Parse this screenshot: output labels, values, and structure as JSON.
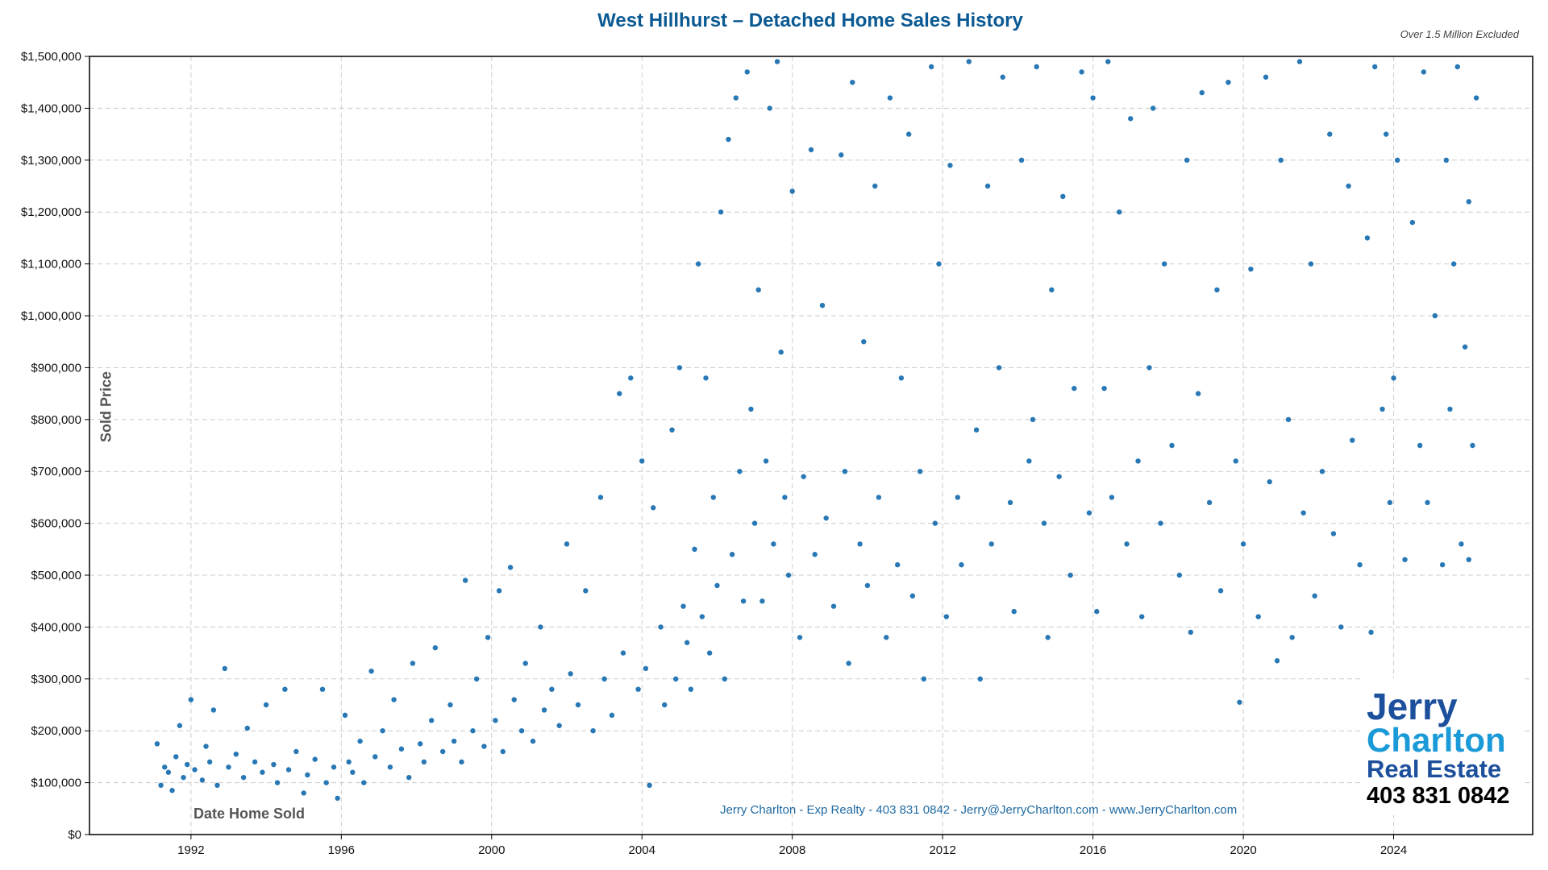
{
  "chart_data": {
    "type": "scatter",
    "title": "West Hillhurst – Detached Home Sales History",
    "note": "Over 1.5 Million Excluded",
    "xlabel": "Date Home Sold",
    "ylabel": "Sold Price",
    "xlim": [
      1989.3,
      2027.7
    ],
    "ylim": [
      0,
      1500000
    ],
    "xticks": [
      "1992",
      "1996",
      "2000",
      "2004",
      "2008",
      "2012",
      "2016",
      "2020",
      "2024"
    ],
    "xtick_values": [
      1992,
      1996,
      2000,
      2004,
      2008,
      2012,
      2016,
      2020,
      2024
    ],
    "yticks": [
      "$0",
      "$100,000",
      "$200,000",
      "$300,000",
      "$400,000",
      "$500,000",
      "$600,000",
      "$700,000",
      "$800,000",
      "$900,000",
      "$1,000,000",
      "$1,100,000",
      "$1,200,000",
      "$1,300,000",
      "$1,400,000",
      "$1,500,000"
    ],
    "ytick_values": [
      0,
      100000,
      200000,
      300000,
      400000,
      500000,
      600000,
      700000,
      800000,
      900000,
      1000000,
      1100000,
      1200000,
      1300000,
      1400000,
      1500000
    ],
    "grid": true,
    "marker_color": "#2878b5",
    "points": [
      [
        1991.1,
        175000
      ],
      [
        1991.2,
        95000
      ],
      [
        1991.3,
        130000
      ],
      [
        1991.4,
        120000
      ],
      [
        1991.5,
        85000
      ],
      [
        1991.6,
        150000
      ],
      [
        1991.7,
        210000
      ],
      [
        1991.8,
        110000
      ],
      [
        1991.9,
        135000
      ],
      [
        1992.0,
        260000
      ],
      [
        1992.1,
        125000
      ],
      [
        1992.3,
        105000
      ],
      [
        1992.4,
        170000
      ],
      [
        1992.5,
        140000
      ],
      [
        1992.6,
        240000
      ],
      [
        1992.7,
        95000
      ],
      [
        1992.9,
        320000
      ],
      [
        1993.0,
        130000
      ],
      [
        1993.2,
        155000
      ],
      [
        1993.4,
        110000
      ],
      [
        1993.5,
        205000
      ],
      [
        1993.7,
        140000
      ],
      [
        1993.9,
        120000
      ],
      [
        1994.0,
        250000
      ],
      [
        1994.2,
        135000
      ],
      [
        1994.3,
        100000
      ],
      [
        1994.5,
        280000
      ],
      [
        1994.6,
        125000
      ],
      [
        1994.8,
        160000
      ],
      [
        1995.0,
        80000
      ],
      [
        1995.1,
        115000
      ],
      [
        1995.3,
        145000
      ],
      [
        1995.5,
        280000
      ],
      [
        1995.6,
        100000
      ],
      [
        1995.8,
        130000
      ],
      [
        1995.9,
        70000
      ],
      [
        1996.1,
        230000
      ],
      [
        1996.2,
        140000
      ],
      [
        1996.3,
        120000
      ],
      [
        1996.5,
        180000
      ],
      [
        1996.6,
        100000
      ],
      [
        1996.8,
        315000
      ],
      [
        1996.9,
        150000
      ],
      [
        1997.1,
        200000
      ],
      [
        1997.3,
        130000
      ],
      [
        1997.4,
        260000
      ],
      [
        1997.6,
        165000
      ],
      [
        1997.8,
        110000
      ],
      [
        1997.9,
        330000
      ],
      [
        1998.1,
        175000
      ],
      [
        1998.2,
        140000
      ],
      [
        1998.4,
        220000
      ],
      [
        1998.5,
        360000
      ],
      [
        1998.7,
        160000
      ],
      [
        1998.9,
        250000
      ],
      [
        1999.0,
        180000
      ],
      [
        1999.2,
        140000
      ],
      [
        1999.3,
        490000
      ],
      [
        1999.5,
        200000
      ],
      [
        1999.6,
        300000
      ],
      [
        1999.8,
        170000
      ],
      [
        1999.9,
        380000
      ],
      [
        2000.1,
        220000
      ],
      [
        2000.2,
        470000
      ],
      [
        2000.3,
        160000
      ],
      [
        2000.5,
        515000
      ],
      [
        2000.6,
        260000
      ],
      [
        2000.8,
        200000
      ],
      [
        2000.9,
        330000
      ],
      [
        2001.1,
        180000
      ],
      [
        2001.3,
        400000
      ],
      [
        2001.4,
        240000
      ],
      [
        2001.6,
        280000
      ],
      [
        2001.8,
        210000
      ],
      [
        2002.0,
        560000
      ],
      [
        2002.1,
        310000
      ],
      [
        2002.3,
        250000
      ],
      [
        2002.5,
        470000
      ],
      [
        2002.7,
        200000
      ],
      [
        2002.9,
        650000
      ],
      [
        2003.0,
        300000
      ],
      [
        2003.2,
        230000
      ],
      [
        2003.4,
        850000
      ],
      [
        2003.5,
        350000
      ],
      [
        2003.7,
        880000
      ],
      [
        2003.9,
        280000
      ],
      [
        2004.0,
        720000
      ],
      [
        2004.1,
        320000
      ],
      [
        2004.2,
        95000
      ],
      [
        2004.3,
        630000
      ],
      [
        2004.5,
        400000
      ],
      [
        2004.6,
        250000
      ],
      [
        2004.8,
        780000
      ],
      [
        2004.9,
        300000
      ],
      [
        2005.0,
        900000
      ],
      [
        2005.1,
        440000
      ],
      [
        2005.2,
        370000
      ],
      [
        2005.3,
        280000
      ],
      [
        2005.4,
        550000
      ],
      [
        2005.5,
        1100000
      ],
      [
        2005.6,
        420000
      ],
      [
        2005.7,
        880000
      ],
      [
        2005.8,
        350000
      ],
      [
        2005.9,
        650000
      ],
      [
        2006.0,
        480000
      ],
      [
        2006.1,
        1200000
      ],
      [
        2006.2,
        300000
      ],
      [
        2006.3,
        1340000
      ],
      [
        2006.4,
        540000
      ],
      [
        2006.5,
        1420000
      ],
      [
        2006.6,
        700000
      ],
      [
        2006.7,
        450000
      ],
      [
        2006.8,
        1470000
      ],
      [
        2006.9,
        820000
      ],
      [
        2007.0,
        600000
      ],
      [
        2007.1,
        1050000
      ],
      [
        2007.2,
        450000
      ],
      [
        2007.3,
        720000
      ],
      [
        2007.4,
        1400000
      ],
      [
        2007.5,
        560000
      ],
      [
        2007.6,
        1490000
      ],
      [
        2007.7,
        930000
      ],
      [
        2007.8,
        650000
      ],
      [
        2007.9,
        500000
      ],
      [
        2008.0,
        1240000
      ],
      [
        2008.2,
        380000
      ],
      [
        2008.3,
        690000
      ],
      [
        2008.5,
        1320000
      ],
      [
        2008.6,
        540000
      ],
      [
        2008.8,
        1020000
      ],
      [
        2008.9,
        610000
      ],
      [
        2009.1,
        440000
      ],
      [
        2009.3,
        1310000
      ],
      [
        2009.4,
        700000
      ],
      [
        2009.5,
        330000
      ],
      [
        2009.6,
        1450000
      ],
      [
        2009.8,
        560000
      ],
      [
        2009.9,
        950000
      ],
      [
        2010.0,
        480000
      ],
      [
        2010.2,
        1250000
      ],
      [
        2010.3,
        650000
      ],
      [
        2010.5,
        380000
      ],
      [
        2010.6,
        1420000
      ],
      [
        2010.8,
        520000
      ],
      [
        2010.9,
        880000
      ],
      [
        2011.1,
        1350000
      ],
      [
        2011.2,
        460000
      ],
      [
        2011.4,
        700000
      ],
      [
        2011.5,
        300000
      ],
      [
        2011.7,
        1480000
      ],
      [
        2011.8,
        600000
      ],
      [
        2011.9,
        1100000
      ],
      [
        2012.1,
        420000
      ],
      [
        2012.2,
        1290000
      ],
      [
        2012.4,
        650000
      ],
      [
        2012.5,
        520000
      ],
      [
        2012.7,
        1490000
      ],
      [
        2012.9,
        780000
      ],
      [
        2013.0,
        300000
      ],
      [
        2013.2,
        1250000
      ],
      [
        2013.3,
        560000
      ],
      [
        2013.5,
        900000
      ],
      [
        2013.6,
        1460000
      ],
      [
        2013.8,
        640000
      ],
      [
        2013.9,
        430000
      ],
      [
        2014.1,
        1300000
      ],
      [
        2014.3,
        720000
      ],
      [
        2014.4,
        800000
      ],
      [
        2014.5,
        1480000
      ],
      [
        2014.7,
        600000
      ],
      [
        2014.8,
        380000
      ],
      [
        2014.9,
        1050000
      ],
      [
        2015.1,
        690000
      ],
      [
        2015.2,
        1230000
      ],
      [
        2015.4,
        500000
      ],
      [
        2015.5,
        860000
      ],
      [
        2015.7,
        1470000
      ],
      [
        2015.9,
        620000
      ],
      [
        2016.0,
        1420000
      ],
      [
        2016.1,
        430000
      ],
      [
        2016.3,
        860000
      ],
      [
        2016.4,
        1490000
      ],
      [
        2016.5,
        650000
      ],
      [
        2016.7,
        1200000
      ],
      [
        2016.9,
        560000
      ],
      [
        2017.0,
        1380000
      ],
      [
        2017.2,
        720000
      ],
      [
        2017.3,
        420000
      ],
      [
        2017.5,
        900000
      ],
      [
        2017.6,
        1400000
      ],
      [
        2017.8,
        600000
      ],
      [
        2017.9,
        1100000
      ],
      [
        2018.1,
        750000
      ],
      [
        2018.3,
        500000
      ],
      [
        2018.5,
        1300000
      ],
      [
        2018.6,
        390000
      ],
      [
        2018.8,
        850000
      ],
      [
        2018.9,
        1430000
      ],
      [
        2019.1,
        640000
      ],
      [
        2019.3,
        1050000
      ],
      [
        2019.4,
        470000
      ],
      [
        2019.6,
        1450000
      ],
      [
        2019.8,
        720000
      ],
      [
        2019.9,
        255000
      ],
      [
        2020.0,
        560000
      ],
      [
        2020.2,
        1090000
      ],
      [
        2020.4,
        420000
      ],
      [
        2020.6,
        1460000
      ],
      [
        2020.7,
        680000
      ],
      [
        2020.9,
        335000
      ],
      [
        2021.0,
        1300000
      ],
      [
        2021.2,
        800000
      ],
      [
        2021.3,
        380000
      ],
      [
        2021.5,
        1490000
      ],
      [
        2021.6,
        620000
      ],
      [
        2021.8,
        1100000
      ],
      [
        2021.9,
        460000
      ],
      [
        2022.1,
        700000
      ],
      [
        2022.3,
        1350000
      ],
      [
        2022.4,
        580000
      ],
      [
        2022.6,
        400000
      ],
      [
        2022.8,
        1250000
      ],
      [
        2022.9,
        760000
      ],
      [
        2023.1,
        520000
      ],
      [
        2023.3,
        1150000
      ],
      [
        2023.4,
        390000
      ],
      [
        2023.5,
        1480000
      ],
      [
        2023.7,
        820000
      ],
      [
        2023.8,
        1350000
      ],
      [
        2023.9,
        640000
      ],
      [
        2024.0,
        880000
      ],
      [
        2024.1,
        1300000
      ],
      [
        2024.3,
        530000
      ],
      [
        2024.5,
        1180000
      ],
      [
        2024.7,
        750000
      ],
      [
        2024.8,
        1470000
      ],
      [
        2024.9,
        640000
      ],
      [
        2025.1,
        1000000
      ],
      [
        2025.3,
        520000
      ],
      [
        2025.4,
        1300000
      ],
      [
        2025.5,
        820000
      ],
      [
        2025.6,
        1100000
      ],
      [
        2025.7,
        1480000
      ],
      [
        2025.8,
        560000
      ],
      [
        2025.9,
        940000
      ],
      [
        2026.0,
        1220000
      ],
      [
        2026.1,
        750000
      ],
      [
        2026.2,
        1420000
      ],
      [
        2026.0,
        530000
      ]
    ]
  },
  "footer": "Jerry Charlton - Exp Realty - 403 831 0842 - Jerry@JerryCharlton.com - www.JerryCharlton.com",
  "logo": {
    "line1": "Jerry",
    "line2": "Charlton",
    "line3": "Real Estate",
    "phone": "403 831 0842"
  }
}
